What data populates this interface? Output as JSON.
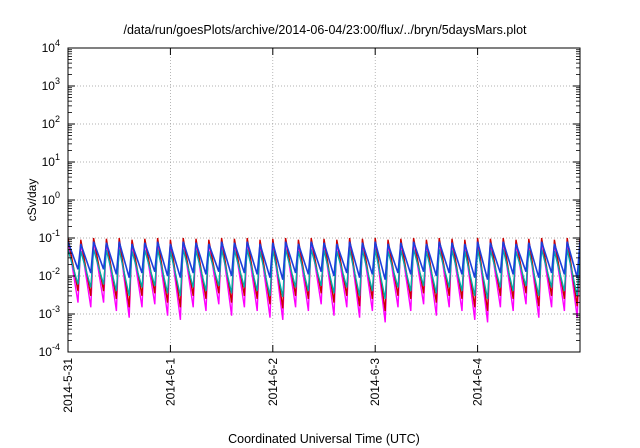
{
  "chart_data": {
    "type": "line",
    "title": "/data/run/goesPlots/archive/2014-06-04/23:00/flux/../bryn/5daysMars.plot",
    "xlabel": "Coordinated Universal Time (UTC)",
    "ylabel": "cSv/day",
    "y_scale": "log",
    "ylim": [
      0.0001,
      10000
    ],
    "xlim": [
      "2014-05-31",
      "2014-06-05"
    ],
    "grid": true,
    "legend": "none",
    "x_ticks": [
      "2014-5-31",
      "2014-6-1",
      "2014-6-2",
      "2014-6-3",
      "2014-6-4"
    ],
    "y_ticks": [
      {
        "value": 0.0001,
        "base": "10",
        "exp": "-4"
      },
      {
        "value": 0.001,
        "base": "10",
        "exp": "-3"
      },
      {
        "value": 0.01,
        "base": "10",
        "exp": "-2"
      },
      {
        "value": 0.1,
        "base": "10",
        "exp": "-1"
      },
      {
        "value": 1,
        "base": "10",
        "exp": "0"
      },
      {
        "value": 10,
        "base": "10",
        "exp": "1"
      },
      {
        "value": 100,
        "base": "10",
        "exp": "2"
      },
      {
        "value": 1000,
        "base": "10",
        "exp": "3"
      },
      {
        "value": 10000,
        "base": "10",
        "exp": "4"
      }
    ],
    "cycle_peaks": [
      "2014-05-31T00:00",
      "2014-05-31T03:00",
      "2014-05-31T06:00",
      "2014-05-31T09:00",
      "2014-05-31T12:00",
      "2014-05-31T15:00",
      "2014-05-31T18:00",
      "2014-05-31T21:00",
      "2014-06-01T00:00",
      "2014-06-01T03:00",
      "2014-06-01T06:00",
      "2014-06-01T09:00",
      "2014-06-01T12:00",
      "2014-06-01T15:00",
      "2014-06-01T18:00",
      "2014-06-01T21:00",
      "2014-06-02T00:00",
      "2014-06-02T03:00",
      "2014-06-02T06:00",
      "2014-06-02T09:00",
      "2014-06-02T12:00",
      "2014-06-02T15:00",
      "2014-06-02T18:00",
      "2014-06-02T21:00",
      "2014-06-03T00:00",
      "2014-06-03T03:00",
      "2014-06-03T06:00",
      "2014-06-03T09:00",
      "2014-06-03T12:00",
      "2014-06-03T15:00",
      "2014-06-03T18:00",
      "2014-06-03T21:00",
      "2014-06-04T00:00",
      "2014-06-04T03:00",
      "2014-06-04T06:00",
      "2014-06-04T09:00",
      "2014-06-04T12:00",
      "2014-06-04T15:00",
      "2014-06-04T18:00",
      "2014-06-04T21:00"
    ],
    "series": [
      {
        "color": "#ff00ff",
        "peak_values": [
          0.09,
          0.08,
          0.09,
          0.085,
          0.09,
          0.08,
          0.085,
          0.09,
          0.08,
          0.09,
          0.085,
          0.08,
          0.09,
          0.085,
          0.09,
          0.08,
          0.085,
          0.09,
          0.08,
          0.09,
          0.085,
          0.08,
          0.09,
          0.085,
          0.09,
          0.08,
          0.085,
          0.09,
          0.08,
          0.09,
          0.085,
          0.08,
          0.09,
          0.085,
          0.09,
          0.08,
          0.085,
          0.09,
          0.08,
          0.09
        ],
        "trough_values": [
          0.002,
          0.0015,
          0.002,
          0.0012,
          0.0008,
          0.0015,
          0.0018,
          0.0009,
          0.0007,
          0.0015,
          0.0012,
          0.0018,
          0.0009,
          0.0015,
          0.0012,
          0.0008,
          0.0007,
          0.0015,
          0.0012,
          0.0018,
          0.0009,
          0.0015,
          0.0008,
          0.0012,
          0.0006,
          0.0015,
          0.0012,
          0.0018,
          0.0009,
          0.0015,
          0.0012,
          0.0007,
          0.0006,
          0.0015,
          0.0012,
          0.0018,
          0.0008,
          0.0015,
          0.0012,
          0.0008
        ]
      },
      {
        "color": "#cc0000",
        "peak_values": [
          0.1,
          0.09,
          0.1,
          0.095,
          0.1,
          0.09,
          0.095,
          0.1,
          0.09,
          0.1,
          0.095,
          0.09,
          0.1,
          0.095,
          0.1,
          0.09,
          0.095,
          0.1,
          0.09,
          0.1,
          0.095,
          0.09,
          0.1,
          0.095,
          0.1,
          0.09,
          0.095,
          0.1,
          0.09,
          0.1,
          0.095,
          0.09,
          0.1,
          0.095,
          0.1,
          0.09,
          0.095,
          0.1,
          0.09,
          0.1
        ],
        "trough_values": [
          0.004,
          0.003,
          0.004,
          0.0025,
          0.0015,
          0.003,
          0.0035,
          0.002,
          0.0015,
          0.003,
          0.0025,
          0.0035,
          0.002,
          0.003,
          0.0025,
          0.0018,
          0.0014,
          0.003,
          0.0025,
          0.0035,
          0.002,
          0.003,
          0.0016,
          0.0025,
          0.0012,
          0.003,
          0.0025,
          0.0035,
          0.002,
          0.003,
          0.0025,
          0.0015,
          0.0012,
          0.003,
          0.0025,
          0.0035,
          0.0016,
          0.003,
          0.0025,
          0.0016
        ]
      },
      {
        "color": "#00aaaa",
        "peak_values": [
          0.05,
          0.045,
          0.05,
          0.048,
          0.05,
          0.045,
          0.048,
          0.05,
          0.045,
          0.05,
          0.048,
          0.045,
          0.05,
          0.048,
          0.05,
          0.045,
          0.048,
          0.05,
          0.045,
          0.05,
          0.048,
          0.045,
          0.05,
          0.048,
          0.05,
          0.045,
          0.048,
          0.05,
          0.045,
          0.05,
          0.048,
          0.045,
          0.05,
          0.048,
          0.05,
          0.045,
          0.048,
          0.05,
          0.045,
          0.05
        ],
        "trough_values": [
          0.006,
          0.005,
          0.006,
          0.004,
          0.003,
          0.005,
          0.0055,
          0.0035,
          0.003,
          0.005,
          0.004,
          0.0055,
          0.0035,
          0.005,
          0.004,
          0.003,
          0.0028,
          0.005,
          0.004,
          0.0055,
          0.0035,
          0.005,
          0.003,
          0.004,
          0.0025,
          0.005,
          0.004,
          0.0055,
          0.0035,
          0.005,
          0.004,
          0.003,
          0.0025,
          0.005,
          0.004,
          0.0055,
          0.003,
          0.005,
          0.004,
          0.003
        ]
      },
      {
        "color": "#1c3fdc",
        "peak_values": [
          0.08,
          0.07,
          0.08,
          0.075,
          0.08,
          0.07,
          0.075,
          0.08,
          0.07,
          0.08,
          0.075,
          0.07,
          0.08,
          0.075,
          0.08,
          0.07,
          0.075,
          0.08,
          0.07,
          0.08,
          0.075,
          0.07,
          0.08,
          0.075,
          0.08,
          0.07,
          0.075,
          0.08,
          0.07,
          0.08,
          0.075,
          0.07,
          0.08,
          0.075,
          0.08,
          0.07,
          0.075,
          0.08,
          0.07,
          0.08
        ],
        "trough_values": [
          0.015,
          0.012,
          0.015,
          0.011,
          0.009,
          0.012,
          0.013,
          0.01,
          0.009,
          0.012,
          0.011,
          0.013,
          0.01,
          0.012,
          0.011,
          0.009,
          0.008,
          0.012,
          0.011,
          0.013,
          0.01,
          0.012,
          0.009,
          0.011,
          0.008,
          0.012,
          0.011,
          0.013,
          0.01,
          0.012,
          0.011,
          0.009,
          0.008,
          0.012,
          0.011,
          0.013,
          0.009,
          0.012,
          0.011,
          0.009
        ]
      }
    ]
  }
}
